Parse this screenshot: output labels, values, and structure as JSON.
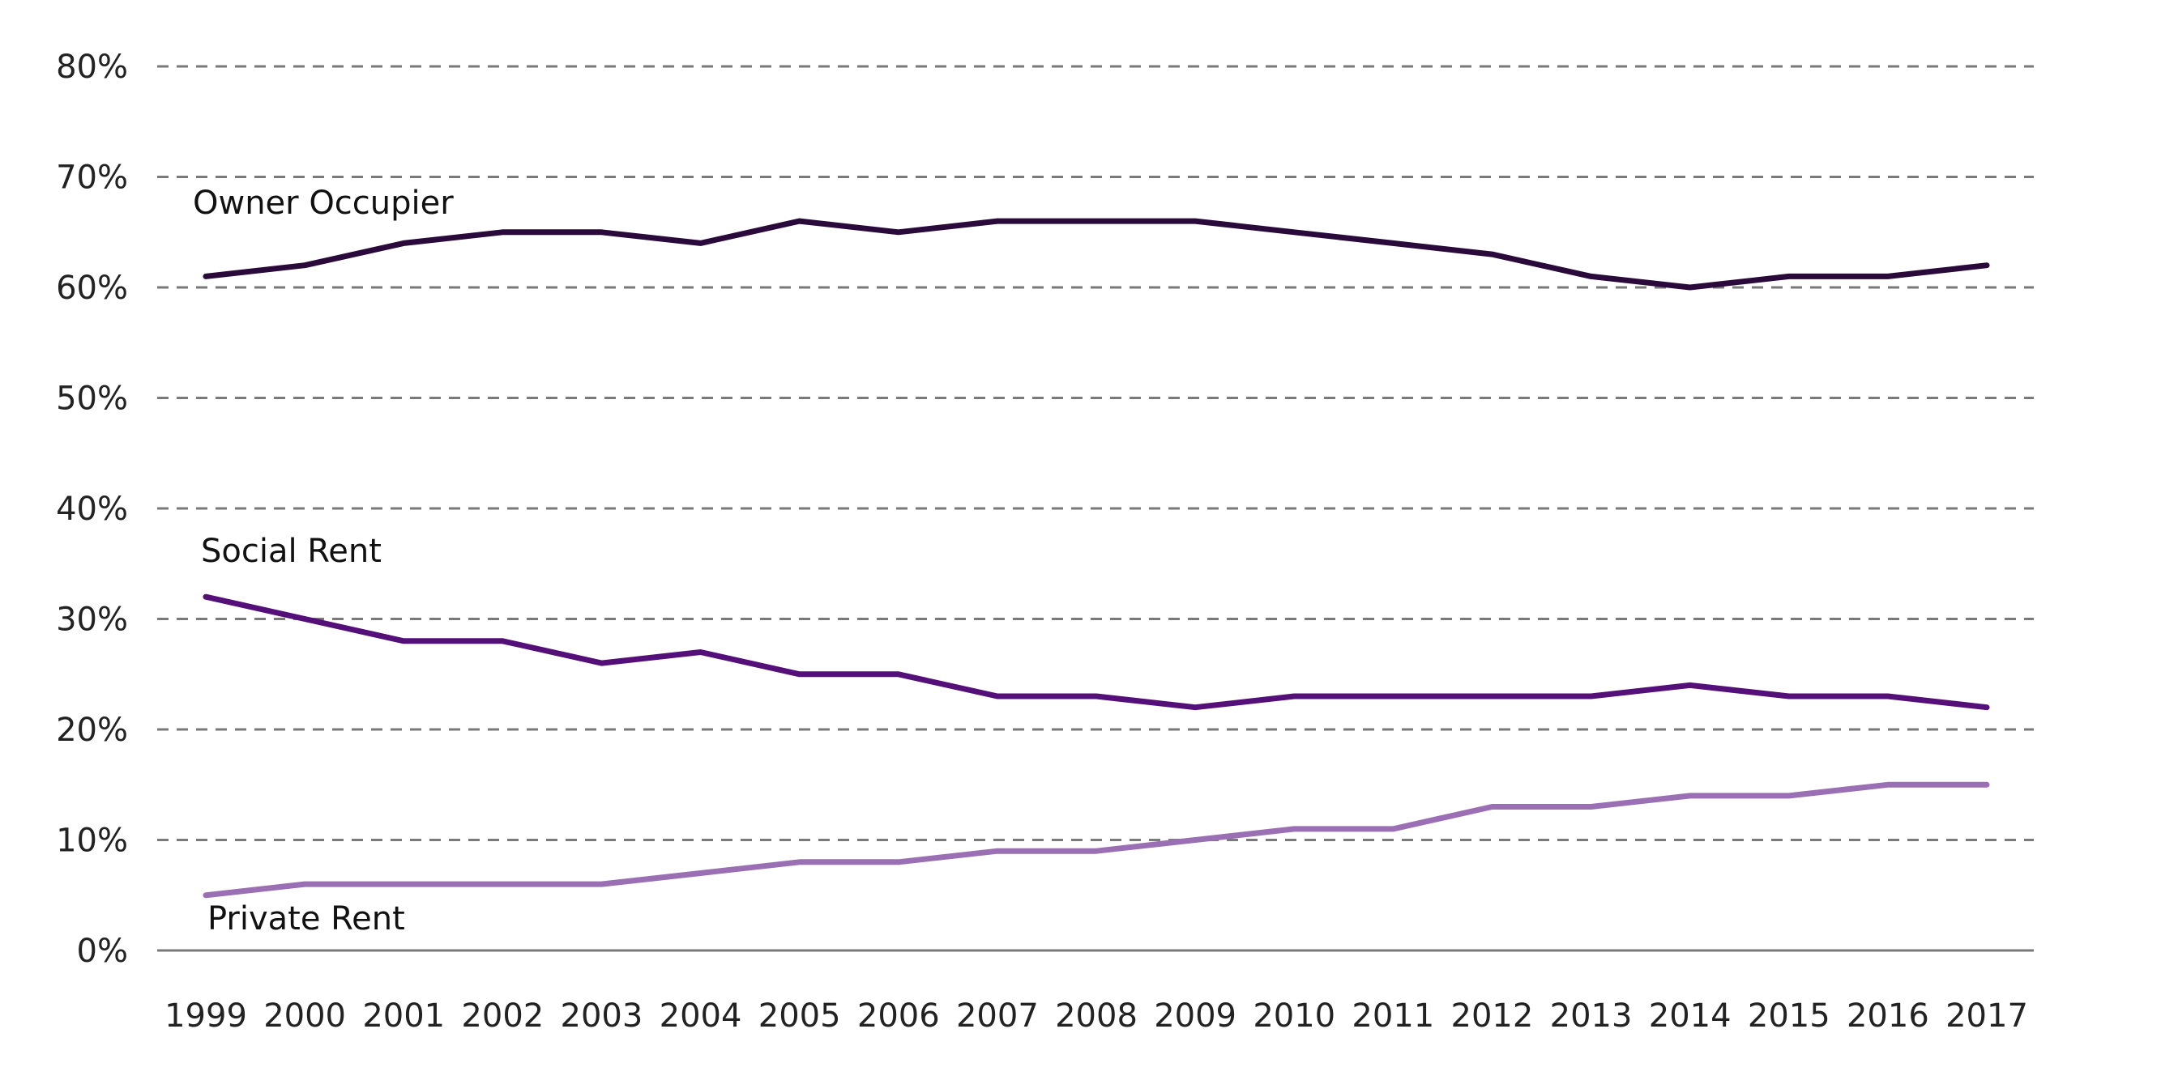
{
  "chart_data": {
    "type": "line",
    "title": "",
    "xlabel": "",
    "ylabel": "",
    "x": [
      "1999",
      "2000",
      "2001",
      "2002",
      "2003",
      "2004",
      "2005",
      "2006",
      "2007",
      "2008",
      "2009",
      "2010",
      "2011",
      "2012",
      "2013",
      "2014",
      "2015",
      "2016",
      "2017"
    ],
    "ylim": [
      0,
      80
    ],
    "y_ticks": [
      "0%",
      "10%",
      "20%",
      "30%",
      "40%",
      "50%",
      "60%",
      "70%",
      "80%"
    ],
    "grid": true,
    "legend": "none (series labeled directly on chart)",
    "series": [
      {
        "name": "Owner Occupier",
        "color": "#2a0a3a",
        "values": [
          61,
          62,
          64,
          65,
          65,
          64,
          66,
          65,
          66,
          66,
          66,
          65,
          64,
          63,
          61,
          60,
          61,
          61,
          62
        ]
      },
      {
        "name": "Social Rent",
        "color": "#541078",
        "values": [
          32,
          30,
          28,
          28,
          26,
          27,
          25,
          25,
          23,
          23,
          22,
          23,
          23,
          23,
          23,
          24,
          23,
          23,
          22
        ]
      },
      {
        "name": "Private Rent",
        "color": "#9b6fb4",
        "values": [
          5,
          6,
          6,
          6,
          6,
          7,
          8,
          8,
          9,
          9,
          10,
          11,
          11,
          13,
          13,
          14,
          14,
          15,
          15
        ]
      }
    ]
  }
}
